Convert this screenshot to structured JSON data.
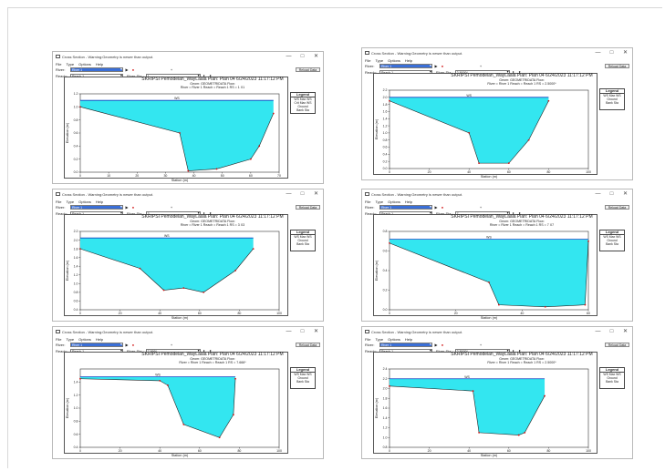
{
  "windows": [
    {
      "title": "Cross Section - Warning:Geometry is newer than output.",
      "menu": [
        "File",
        "Type",
        "Options",
        "Help"
      ],
      "river_label": "River:",
      "river_value": "River 1",
      "reach_label": "Reach:",
      "reach_value": "Reach 1",
      "rivsta_label": "River Sta.:",
      "rivsta_value": "1",
      "reload_label": "Reload Data",
      "plot_title": "SKRIPSI Pemodelan_WayLaala     Plan: Plan 04     6/24/2023  11:17:12 PM",
      "plot_subtitle1": "Geom: GEOMETRIDATA   Flow:",
      "plot_subtitle2": "River = River 1   Reach = Reach 1     RS = 1     X1",
      "ws_label": "WS",
      "xlabel": "Station (m)",
      "ylabel": "Elevation (m)",
      "legend": {
        "title": "Legend",
        "items": [
          "WS Max WS",
          "Crit Max WS",
          "Ground",
          "Bank Sta"
        ]
      },
      "chart_data": {
        "type": "area",
        "xlim": [
          0,
          70
        ],
        "ylim": [
          0,
          1.2
        ],
        "xticks": [
          0,
          10,
          20,
          30,
          40,
          50,
          60,
          70
        ],
        "yticks": [
          0.0,
          0.2,
          0.4,
          0.6,
          0.8,
          1.0,
          1.2
        ],
        "water_surface": 1.1,
        "ground": {
          "x": [
            0,
            35,
            38,
            48,
            60,
            63,
            68
          ],
          "y": [
            1.0,
            0.6,
            0.02,
            0.05,
            0.2,
            0.4,
            0.9
          ]
        }
      }
    },
    {
      "title": "Cross Section - Warning:Geometry is newer than output.",
      "menu": [
        "File",
        "Type",
        "Options",
        "Help"
      ],
      "river_label": "River:",
      "river_value": "River 1",
      "reach_label": "Reach:",
      "reach_value": "Reach 1",
      "rivsta_label": "River Sta.:",
      "rivsta_value": "2.5000*",
      "reload_label": "Reload Data",
      "plot_title": "SKRIPSI Pemodelan_WayLaala     Plan: Plan 04     6/24/2023  11:17:12 PM",
      "plot_subtitle1": "Geom: GEOMETRIDATA   Flow:",
      "plot_subtitle2": "River = River 1   Reach = Reach 1     RS = 2.5000*",
      "ws_label": "WS",
      "xlabel": "Station (m)",
      "ylabel": "Elevation (m)",
      "legend": {
        "title": "Legend",
        "items": [
          "WS Max WS",
          "Ground",
          "Bank Sta"
        ]
      },
      "chart_data": {
        "type": "area",
        "xlim": [
          0,
          100
        ],
        "ylim": [
          0,
          2.2
        ],
        "xticks": [
          0,
          20,
          40,
          60,
          80,
          100
        ],
        "yticks": [
          0.0,
          0.2,
          0.4,
          0.6,
          0.8,
          1.0,
          1.2,
          1.4,
          1.6,
          1.8,
          2.0,
          2.2
        ],
        "water_surface": 2.0,
        "ground": {
          "x": [
            0,
            40,
            45,
            60,
            70,
            80
          ],
          "y": [
            1.9,
            1.0,
            0.15,
            0.15,
            0.8,
            1.9
          ]
        }
      }
    },
    {
      "title": "Cross Section - Warning:Geometry is newer than output.",
      "menu": [
        "File",
        "Type",
        "Options",
        "Help"
      ],
      "river_label": "River:",
      "river_value": "River 1",
      "reach_label": "Reach:",
      "reach_value": "Reach 1",
      "rivsta_label": "River Sta.:",
      "rivsta_value": "3",
      "reload_label": "Reload Data",
      "plot_title": "SKRIPSI Pemodelan_WayLaala     Plan: Plan 04     6/24/2023  11:17:12 PM",
      "plot_subtitle1": "Geom: GEOMETRIDATA   Flow:",
      "plot_subtitle2": "River = River 1   Reach = Reach 1     RS = 3     X3",
      "ws_label": "WS",
      "xlabel": "Station (m)",
      "ylabel": "Elevation (m)",
      "legend": {
        "title": "Legend",
        "items": [
          "WS Max WS",
          "Ground",
          "Bank Sta"
        ]
      },
      "chart_data": {
        "type": "area",
        "xlim": [
          0,
          100
        ],
        "ylim": [
          0.4,
          2.2
        ],
        "xticks": [
          0,
          20,
          40,
          60,
          80,
          100
        ],
        "yticks": [
          0.4,
          0.6,
          0.8,
          1.0,
          1.2,
          1.4,
          1.6,
          1.8,
          2.0,
          2.2
        ],
        "water_surface": 2.05,
        "ground": {
          "x": [
            0,
            30,
            42,
            52,
            62,
            78,
            87
          ],
          "y": [
            1.8,
            1.35,
            0.85,
            0.9,
            0.8,
            1.3,
            1.8
          ]
        }
      }
    },
    {
      "title": "Cross Section - Warning:Geometry is newer than output.",
      "menu": [
        "File",
        "Type",
        "Options",
        "Help"
      ],
      "river_label": "River:",
      "river_value": "River 1",
      "reach_label": "Reach:",
      "reach_value": "Reach 1",
      "rivsta_label": "River Sta.:",
      "rivsta_value": "7",
      "reload_label": "Reload Data",
      "plot_title": "SKRIPSI Pemodelan_WayLaala     Plan: Plan 04     6/24/2023  11:17:12 PM",
      "plot_subtitle1": "Geom: GEOMETRIDATA   Flow:",
      "plot_subtitle2": "River = River 1   Reach = Reach 1     RS = 7     X7",
      "ws_label": "WS",
      "xlabel": "Station (m)",
      "ylabel": "Elevation (m)",
      "legend": {
        "title": "Legend",
        "items": [
          "WS Max WS",
          "Ground",
          "Bank Sta"
        ]
      },
      "chart_data": {
        "type": "area",
        "xlim": [
          0,
          60
        ],
        "ylim": [
          0,
          0.8
        ],
        "xticks": [
          0,
          20,
          40,
          60
        ],
        "yticks": [
          0.0,
          0.2,
          0.4,
          0.6,
          0.8
        ],
        "water_surface": 0.72,
        "ground": {
          "x": [
            0,
            30,
            33,
            47,
            59,
            60
          ],
          "y": [
            0.68,
            0.28,
            0.05,
            0.03,
            0.05,
            0.7
          ]
        }
      }
    },
    {
      "title": "Cross Section - Warning:Geometry is newer than output.",
      "menu": [
        "File",
        "Type",
        "Options",
        "Help"
      ],
      "river_label": "River:",
      "river_value": "River 1",
      "reach_label": "Reach:",
      "reach_value": "Reach 1",
      "rivsta_label": "River Sta.:",
      "rivsta_value": "7.666*",
      "reload_label": "Reload Data",
      "plot_title": "SKRIPSI Pemodelan_WayLaala     Plan: Plan 04     6/24/2023  11:17:12 PM",
      "plot_subtitle1": "Geom: GEOMETRIDATA   Flow:",
      "plot_subtitle2": "River = River 1   Reach = Reach 1     RS = 7.666*",
      "ws_label": "WS",
      "xlabel": "Station (m)",
      "ylabel": "Elevation (m)",
      "legend": {
        "title": "Legend",
        "items": [
          "WS Max WS",
          "Ground",
          "Bank Sta"
        ]
      },
      "chart_data": {
        "type": "area",
        "xlim": [
          0,
          100
        ],
        "ylim": [
          0.4,
          1.6
        ],
        "xticks": [
          0,
          20,
          40,
          60,
          80,
          100
        ],
        "yticks": [
          0.4,
          0.6,
          0.8,
          1.0,
          1.2,
          1.4
        ],
        "water_surface": 1.48,
        "ground": {
          "x": [
            0,
            40,
            44,
            52,
            70,
            77,
            78
          ],
          "y": [
            1.45,
            1.42,
            1.35,
            0.75,
            0.55,
            0.9,
            1.45
          ]
        }
      }
    },
    {
      "title": "Cross Section - Warning:Geometry is newer than output.",
      "menu": [
        "File",
        "Type",
        "Options",
        "Help"
      ],
      "river_label": "River:",
      "river_value": "River 1",
      "reach_label": "Reach:",
      "reach_value": "Reach 1",
      "rivsta_label": "River Sta.:",
      "rivsta_value": "2.5000*",
      "reload_label": "Reload Data",
      "plot_title": "SKRIPSI Pemodelan_WayLaala     Plan: Plan 04     6/24/2023  11:17:12 PM",
      "plot_subtitle1": "Geom: GEOMETRIDATA   Flow:",
      "plot_subtitle2": "River = River 1   Reach = Reach 1     RS = 2.5000*",
      "ws_label": "WS",
      "xlabel": "Station (m)",
      "ylabel": "Elevation (m)",
      "legend": {
        "title": "Legend",
        "items": [
          "WS Max WS",
          "Ground",
          "Bank Sta"
        ]
      },
      "chart_data": {
        "type": "area",
        "xlim": [
          0,
          100
        ],
        "ylim": [
          0.8,
          2.4
        ],
        "xticks": [
          0,
          20,
          40,
          60,
          80,
          100
        ],
        "yticks": [
          0.8,
          1.0,
          1.2,
          1.4,
          1.6,
          1.8,
          2.0,
          2.2,
          2.4
        ],
        "water_surface": 2.2,
        "ground": {
          "x": [
            0,
            42,
            45,
            65,
            68,
            78
          ],
          "y": [
            2.05,
            1.95,
            1.1,
            1.05,
            1.1,
            1.85
          ]
        }
      }
    }
  ]
}
